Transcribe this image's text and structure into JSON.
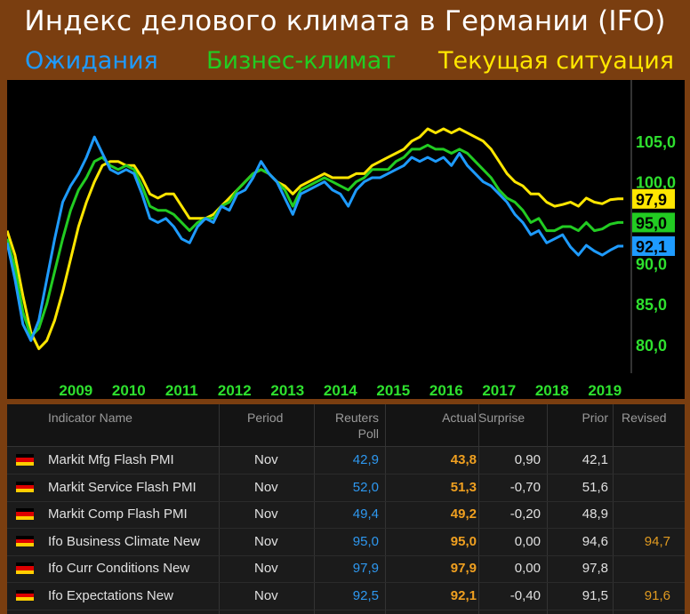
{
  "title": "Индекс делового климата в Германии (IFO)",
  "legend": {
    "expectations": "Ожидания",
    "business": "Бизнес-климат",
    "current": "Текущая ситуация"
  },
  "colors": {
    "expectations": "#1e9bff",
    "business": "#22cc22",
    "current": "#ffe600",
    "frame": "#7a3e10",
    "axis_text": "#2ee02e"
  },
  "chart_data": {
    "type": "line",
    "title": "Индекс делового климата в Германии (IFO)",
    "x_ticks": [
      "2009",
      "2010",
      "2011",
      "2012",
      "2013",
      "2014",
      "2015",
      "2016",
      "2017",
      "2018",
      "2019"
    ],
    "y_ticks": [
      "80,0",
      "85,0",
      "90,0",
      "95,0",
      "100,0",
      "105,0"
    ],
    "ylim": [
      76.5,
      112.5
    ],
    "xlim": [
      2008.2,
      2020.0
    ],
    "grid": false,
    "last_value_labels": [
      {
        "label": "97,9",
        "value": 97.9,
        "series": "Текущая ситуация"
      },
      {
        "label": "95,0",
        "value": 95.0,
        "series": "Бизнес-климат"
      },
      {
        "label": "92,1",
        "value": 92.1,
        "series": "Ожидания"
      }
    ],
    "series": [
      {
        "name": "Ожидания",
        "x": [
          2008.2,
          2008.35,
          2008.5,
          2008.65,
          2008.8,
          2008.95,
          2009.1,
          2009.25,
          2009.4,
          2009.55,
          2009.7,
          2009.85,
          2010.0,
          2010.15,
          2010.3,
          2010.45,
          2010.6,
          2010.75,
          2010.9,
          2011.05,
          2011.2,
          2011.35,
          2011.5,
          2011.65,
          2011.8,
          2011.95,
          2012.1,
          2012.25,
          2012.4,
          2012.55,
          2012.7,
          2012.85,
          2013.0,
          2013.15,
          2013.3,
          2013.45,
          2013.6,
          2013.75,
          2013.9,
          2014.05,
          2014.2,
          2014.35,
          2014.5,
          2014.65,
          2014.8,
          2014.95,
          2015.1,
          2015.25,
          2015.4,
          2015.55,
          2015.7,
          2015.85,
          2016.0,
          2016.15,
          2016.3,
          2016.45,
          2016.6,
          2016.75,
          2016.9,
          2017.05,
          2017.2,
          2017.35,
          2017.5,
          2017.65,
          2017.8,
          2017.95,
          2018.1,
          2018.25,
          2018.4,
          2018.55,
          2018.7,
          2018.85,
          2019.0,
          2019.15,
          2019.3,
          2019.45,
          2019.6,
          2019.75,
          2019.85
        ],
        "y": [
          92.5,
          88.0,
          82.5,
          80.5,
          83.0,
          88.0,
          93.0,
          97.5,
          99.5,
          101.0,
          103.0,
          105.5,
          103.5,
          101.5,
          101.0,
          101.5,
          101.0,
          98.5,
          95.5,
          95.0,
          95.5,
          94.5,
          93.0,
          92.5,
          94.5,
          95.5,
          95.0,
          97.0,
          96.5,
          98.5,
          99.0,
          100.5,
          102.5,
          101.0,
          100.0,
          98.0,
          96.0,
          98.5,
          99.0,
          99.5,
          100.0,
          99.0,
          98.5,
          97.0,
          99.0,
          100.0,
          100.5,
          100.5,
          101.0,
          101.5,
          102.0,
          103.0,
          102.5,
          103.0,
          102.5,
          103.0,
          102.0,
          103.5,
          102.0,
          101.0,
          100.0,
          99.5,
          98.5,
          97.5,
          96.0,
          95.0,
          93.5,
          94.0,
          92.5,
          93.0,
          93.5,
          92.0,
          91.0,
          92.2,
          91.5,
          91.0,
          91.6,
          92.1,
          92.1
        ]
      },
      {
        "name": "Бизнес-климат",
        "x": [
          2008.2,
          2008.35,
          2008.5,
          2008.65,
          2008.8,
          2008.95,
          2009.1,
          2009.25,
          2009.4,
          2009.55,
          2009.7,
          2009.85,
          2010.0,
          2010.15,
          2010.3,
          2010.45,
          2010.6,
          2010.75,
          2010.9,
          2011.05,
          2011.2,
          2011.35,
          2011.5,
          2011.65,
          2011.8,
          2011.95,
          2012.1,
          2012.25,
          2012.4,
          2012.55,
          2012.7,
          2012.85,
          2013.0,
          2013.15,
          2013.3,
          2013.45,
          2013.6,
          2013.75,
          2013.9,
          2014.05,
          2014.2,
          2014.35,
          2014.5,
          2014.65,
          2014.8,
          2014.95,
          2015.1,
          2015.25,
          2015.4,
          2015.55,
          2015.7,
          2015.85,
          2016.0,
          2016.15,
          2016.3,
          2016.45,
          2016.6,
          2016.75,
          2016.9,
          2017.05,
          2017.2,
          2017.35,
          2017.5,
          2017.65,
          2017.8,
          2017.95,
          2018.1,
          2018.25,
          2018.4,
          2018.55,
          2018.7,
          2018.85,
          2019.0,
          2019.15,
          2019.3,
          2019.45,
          2019.6,
          2019.75,
          2019.85
        ],
        "y": [
          93.0,
          89.5,
          84.0,
          81.0,
          82.0,
          85.0,
          89.0,
          93.0,
          96.5,
          99.0,
          100.5,
          102.5,
          103.0,
          102.0,
          101.5,
          102.0,
          101.5,
          99.5,
          97.0,
          96.5,
          96.5,
          96.0,
          95.0,
          94.0,
          95.0,
          95.5,
          95.5,
          97.0,
          97.5,
          99.0,
          100.0,
          101.0,
          101.5,
          101.0,
          100.0,
          99.0,
          97.0,
          99.0,
          99.5,
          100.0,
          100.5,
          100.0,
          99.5,
          99.0,
          100.0,
          100.5,
          101.5,
          101.5,
          101.5,
          102.5,
          103.0,
          104.0,
          104.0,
          104.5,
          104.0,
          104.0,
          103.5,
          104.0,
          103.5,
          102.5,
          101.5,
          100.5,
          99.0,
          98.0,
          97.5,
          96.5,
          95.0,
          95.5,
          94.0,
          94.0,
          94.5,
          94.5,
          94.0,
          95.0,
          94.0,
          94.2,
          94.8,
          95.0,
          95.0
        ]
      },
      {
        "name": "Текущая ситуация",
        "x": [
          2008.2,
          2008.35,
          2008.5,
          2008.65,
          2008.8,
          2008.95,
          2009.1,
          2009.25,
          2009.4,
          2009.55,
          2009.7,
          2009.85,
          2010.0,
          2010.15,
          2010.3,
          2010.45,
          2010.6,
          2010.75,
          2010.9,
          2011.05,
          2011.2,
          2011.35,
          2011.5,
          2011.65,
          2011.8,
          2011.95,
          2012.1,
          2012.25,
          2012.4,
          2012.55,
          2012.7,
          2012.85,
          2013.0,
          2013.15,
          2013.3,
          2013.45,
          2013.6,
          2013.75,
          2013.9,
          2014.05,
          2014.2,
          2014.35,
          2014.5,
          2014.65,
          2014.8,
          2014.95,
          2015.1,
          2015.25,
          2015.4,
          2015.55,
          2015.7,
          2015.85,
          2016.0,
          2016.15,
          2016.3,
          2016.45,
          2016.6,
          2016.75,
          2016.9,
          2017.05,
          2017.2,
          2017.35,
          2017.5,
          2017.65,
          2017.8,
          2017.95,
          2018.1,
          2018.25,
          2018.4,
          2018.55,
          2018.7,
          2018.85,
          2019.0,
          2019.15,
          2019.3,
          2019.45,
          2019.6,
          2019.75,
          2019.85
        ],
        "y": [
          94.0,
          91.0,
          86.0,
          81.5,
          79.5,
          80.5,
          83.0,
          86.5,
          90.5,
          94.5,
          97.5,
          100.0,
          102.0,
          102.5,
          102.5,
          102.0,
          102.0,
          100.5,
          98.5,
          98.0,
          98.5,
          98.5,
          97.0,
          95.5,
          95.5,
          95.5,
          96.0,
          97.0,
          98.0,
          99.0,
          100.0,
          101.0,
          101.5,
          101.0,
          100.0,
          99.5,
          98.5,
          99.5,
          100.0,
          100.5,
          101.0,
          100.5,
          100.5,
          100.5,
          101.0,
          101.0,
          102.0,
          102.5,
          103.0,
          103.5,
          104.0,
          105.0,
          105.5,
          106.5,
          106.0,
          106.5,
          106.0,
          106.5,
          106.0,
          105.5,
          105.0,
          104.0,
          102.5,
          101.0,
          100.0,
          99.5,
          98.5,
          98.5,
          97.5,
          97.0,
          97.2,
          97.5,
          97.0,
          98.0,
          97.5,
          97.3,
          97.8,
          97.9,
          97.9
        ]
      }
    ]
  },
  "table": {
    "headers": {
      "indicator": "Indicator Name",
      "period": "Period",
      "reuters_1": "Reuters",
      "reuters_2": "Poll",
      "actual": "Actual",
      "surprise": "Surprise",
      "prior": "Prior",
      "revised": "Revised"
    },
    "rows": [
      {
        "name": "Markit Mfg Flash PMI",
        "period": "Nov",
        "poll": "42,9",
        "actual": "43,8",
        "surprise": "0,90",
        "prior": "42,1",
        "revised": ""
      },
      {
        "name": "Markit Service Flash PMI",
        "period": "Nov",
        "poll": "52,0",
        "actual": "51,3",
        "surprise": "-0,70",
        "prior": "51,6",
        "revised": ""
      },
      {
        "name": "Markit Comp Flash PMI",
        "period": "Nov",
        "poll": "49,4",
        "actual": "49,2",
        "surprise": "-0,20",
        "prior": "48,9",
        "revised": ""
      },
      {
        "name": "Ifo Business Climate New",
        "period": "Nov",
        "poll": "95,0",
        "actual": "95,0",
        "surprise": "0,00",
        "prior": "94,6",
        "revised": "94,7"
      },
      {
        "name": "Ifo Curr Conditions New",
        "period": "Nov",
        "poll": "97,9",
        "actual": "97,9",
        "surprise": "0,00",
        "prior": "97,8",
        "revised": ""
      },
      {
        "name": "Ifo Expectations New",
        "period": "Nov",
        "poll": "92,5",
        "actual": "92,1",
        "surprise": "-0,40",
        "prior": "91,5",
        "revised": "91,6"
      }
    ]
  }
}
